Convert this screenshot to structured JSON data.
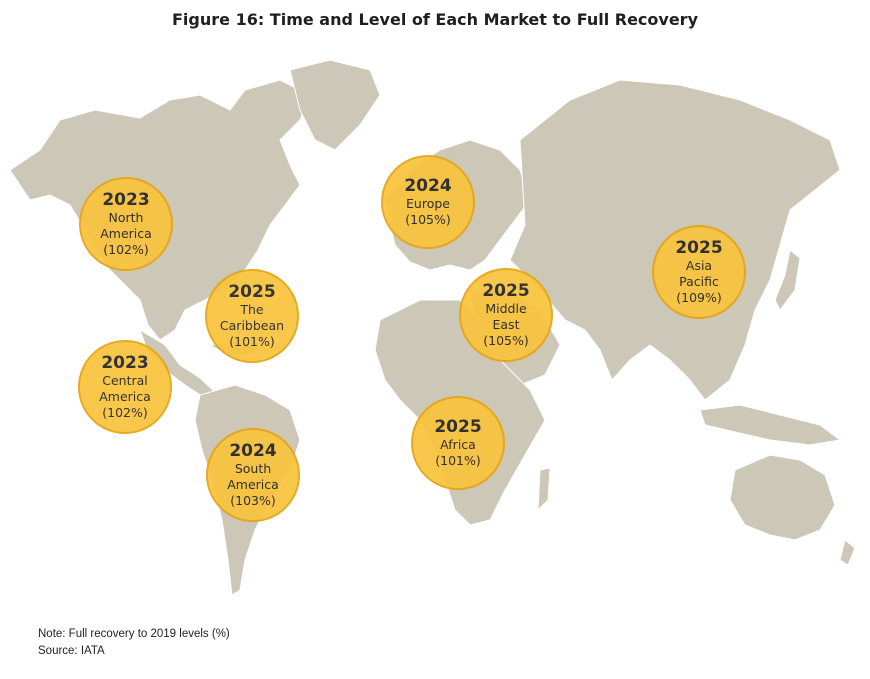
{
  "title": "Figure 16: Time and Level of Each Market to Full Recovery",
  "colors": {
    "land": "#cdc7b7",
    "bubble_fill": "#f9c33d",
    "bubble_border": "#e5a414"
  },
  "markets": [
    {
      "id": "north-america",
      "year": "2023",
      "lines": [
        "North",
        "America",
        "(102%)"
      ]
    },
    {
      "id": "caribbean",
      "year": "2025",
      "lines": [
        "The",
        "Caribbean",
        "(101%)"
      ]
    },
    {
      "id": "central-america",
      "year": "2023",
      "lines": [
        "Central",
        "America",
        "(102%)"
      ]
    },
    {
      "id": "south-america",
      "year": "2024",
      "lines": [
        "South",
        "America",
        "(103%)"
      ]
    },
    {
      "id": "europe",
      "year": "2024",
      "lines": [
        "Europe",
        "(105%)"
      ]
    },
    {
      "id": "middle-east",
      "year": "2025",
      "lines": [
        "Middle",
        "East",
        "(105%)"
      ]
    },
    {
      "id": "africa",
      "year": "2025",
      "lines": [
        "Africa",
        "(101%)"
      ]
    },
    {
      "id": "asia-pacific",
      "year": "2025",
      "lines": [
        "Asia",
        "Pacific",
        "(109%)"
      ]
    }
  ],
  "notes": {
    "note": "Note: Full recovery to 2019 levels (%)",
    "source": "Source: IATA"
  }
}
